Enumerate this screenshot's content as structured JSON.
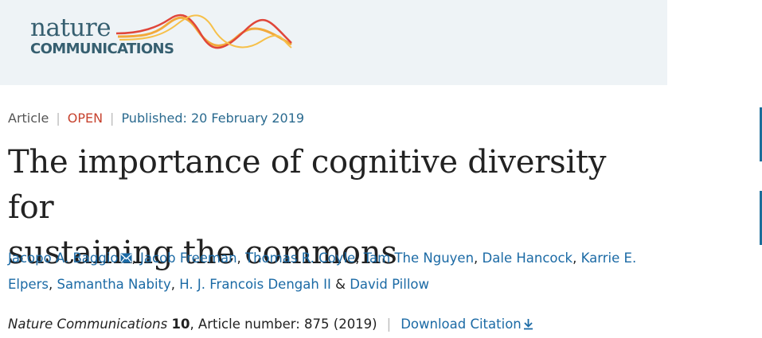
{
  "header": {
    "logo_line1": "nature",
    "logo_line2": "COMMUNICATIONS",
    "brand_color": "#365f70",
    "wave_colors": [
      "#e0463a",
      "#f2a93b"
    ]
  },
  "meta": {
    "type": "Article",
    "access": "OPEN",
    "published": "Published: 20 February 2019",
    "access_color": "#c7432f"
  },
  "title": {
    "line1": "The importance of cognitive diversity for",
    "line2": "sustaining the commons"
  },
  "authors": [
    {
      "name": "Jacopo A. Baggio",
      "icon": "mail-icon",
      "after": ", "
    },
    {
      "name": "Jacob Freeman",
      "after": ", "
    },
    {
      "name": "Thomas R. Coyle",
      "after": ", "
    },
    {
      "name": "Tam The Nguyen",
      "after": ", "
    },
    {
      "name": "Dale Hancock",
      "after": ", "
    },
    {
      "name": "Karrie E. Elpers",
      "after": ", "
    },
    {
      "name": "Samantha Nabity",
      "after": ", "
    },
    {
      "name": "H. J. Francois Dengah II",
      "after": " & "
    },
    {
      "name": "David Pillow",
      "after": ""
    }
  ],
  "citation": {
    "journal": "Nature Communications",
    "volume": "10",
    "rest": ", Article number: 875 (2019)",
    "download_label": "Download Citation",
    "download_icon": "download-icon"
  },
  "link_color": "#1b6aa5"
}
